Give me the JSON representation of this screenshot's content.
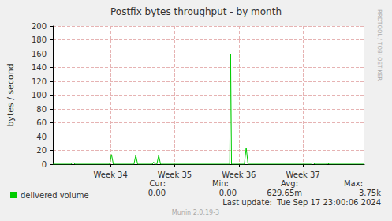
{
  "chart_data": {
    "type": "line",
    "title": "Postfix bytes throughput - by month",
    "ylabel": "bytes / second",
    "x": [
      0,
      2.0,
      2.2,
      2.4,
      6.2,
      6.4,
      6.6,
      8.85,
      9.05,
      9.25,
      10.85,
      11.0,
      11.15,
      11.35,
      11.55,
      11.75,
      19.3,
      19.4,
      19.5,
      20.9,
      21.1,
      21.3,
      28.2,
      28.4,
      28.6,
      29.8,
      30.0,
      30.2,
      34
    ],
    "series": [
      {
        "name": "delivered volume",
        "color": "#00cc00",
        "values": [
          0,
          0,
          3,
          0,
          0,
          14,
          0,
          0,
          13,
          0,
          0,
          3,
          0,
          0,
          13,
          0,
          0,
          160,
          0,
          0,
          24,
          0,
          0,
          2,
          0,
          0,
          1,
          0,
          0
        ]
      }
    ],
    "xlim": [
      0,
      34
    ],
    "xticks": [
      {
        "value": 6.3,
        "label": "Week 34"
      },
      {
        "value": 13.3,
        "label": "Week 35"
      },
      {
        "value": 20.3,
        "label": "Week 36"
      },
      {
        "value": 27.3,
        "label": "Week 37"
      }
    ],
    "ylim": [
      0,
      200
    ],
    "yticks": [
      0,
      20,
      40,
      60,
      80,
      100,
      120,
      140,
      160,
      180,
      200
    ],
    "grid": true,
    "legend": "bottom-left",
    "stats": [
      {
        "name": "Cur:",
        "value": 0,
        "label": "0.00"
      },
      {
        "name": "Min:",
        "value": 0,
        "label": "0.00"
      },
      {
        "name": "Avg:",
        "value": 0.62965,
        "label": "629.65m"
      },
      {
        "name": "Max:",
        "value": 3750,
        "label": "3.75k"
      }
    ],
    "last_update": "Last update:  Tue Sep 17 23:00:06 2024",
    "watermark": "RRDTOOL / TOBI OETIKER",
    "footer": "Munin 2.0.19-3"
  }
}
